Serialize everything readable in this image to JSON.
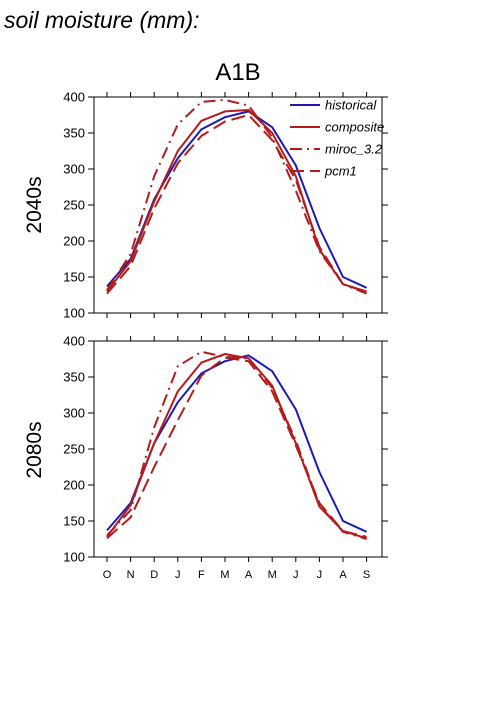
{
  "page": {
    "title": "soil moisture (mm):"
  },
  "chart_data": {
    "type": "line",
    "scenario": "A1B",
    "categories": [
      "O",
      "N",
      "D",
      "J",
      "F",
      "M",
      "A",
      "M",
      "J",
      "J",
      "A",
      "S"
    ],
    "ylim": [
      100,
      400
    ],
    "yticks": [
      100,
      150,
      200,
      250,
      300,
      350,
      400
    ],
    "legend": {
      "placement": "top-right",
      "entries": [
        {
          "name": "historical",
          "color": "#1c1cb4",
          "dash": "solid"
        },
        {
          "name": "composite",
          "color": "#b41c1c",
          "dash": "solid"
        },
        {
          "name": "miroc_3.2",
          "color": "#b41c1c",
          "dash": "dashdot"
        },
        {
          "name": "pcm1",
          "color": "#b41c1c",
          "dash": "dashed"
        }
      ]
    },
    "panels": [
      {
        "label": "2040s",
        "series": [
          {
            "name": "historical",
            "values": [
              137,
              175,
              258,
              315,
              355,
              372,
              380,
              358,
              305,
              218,
              150,
              135
            ]
          },
          {
            "name": "composite",
            "values": [
              130,
              172,
              255,
              325,
              367,
              380,
              382,
              350,
              290,
              188,
              140,
              130
            ]
          },
          {
            "name": "miroc_3.2",
            "values": [
              132,
              182,
              290,
              362,
              393,
              396,
              388,
              344,
              270,
              186,
              140,
              127
            ]
          },
          {
            "name": "pcm1",
            "values": [
              127,
              165,
              245,
              308,
              346,
              366,
              375,
              340,
              285,
              192,
              140,
              129
            ]
          }
        ]
      },
      {
        "label": "2080s",
        "series": [
          {
            "name": "historical",
            "values": [
              137,
              175,
              258,
              315,
              355,
              372,
              380,
              358,
              305,
              218,
              150,
              135
            ]
          },
          {
            "name": "composite",
            "values": [
              128,
              172,
              258,
              330,
              370,
              382,
              376,
              338,
              258,
              170,
              136,
              126
            ]
          },
          {
            "name": "miroc_3.2",
            "values": [
              130,
              165,
              280,
              365,
              385,
              378,
              376,
              335,
              262,
              172,
              135,
              125
            ]
          },
          {
            "name": "pcm1",
            "values": [
              126,
              155,
              225,
              290,
              352,
              377,
              372,
              330,
              255,
              175,
              136,
              128
            ]
          }
        ]
      }
    ]
  }
}
